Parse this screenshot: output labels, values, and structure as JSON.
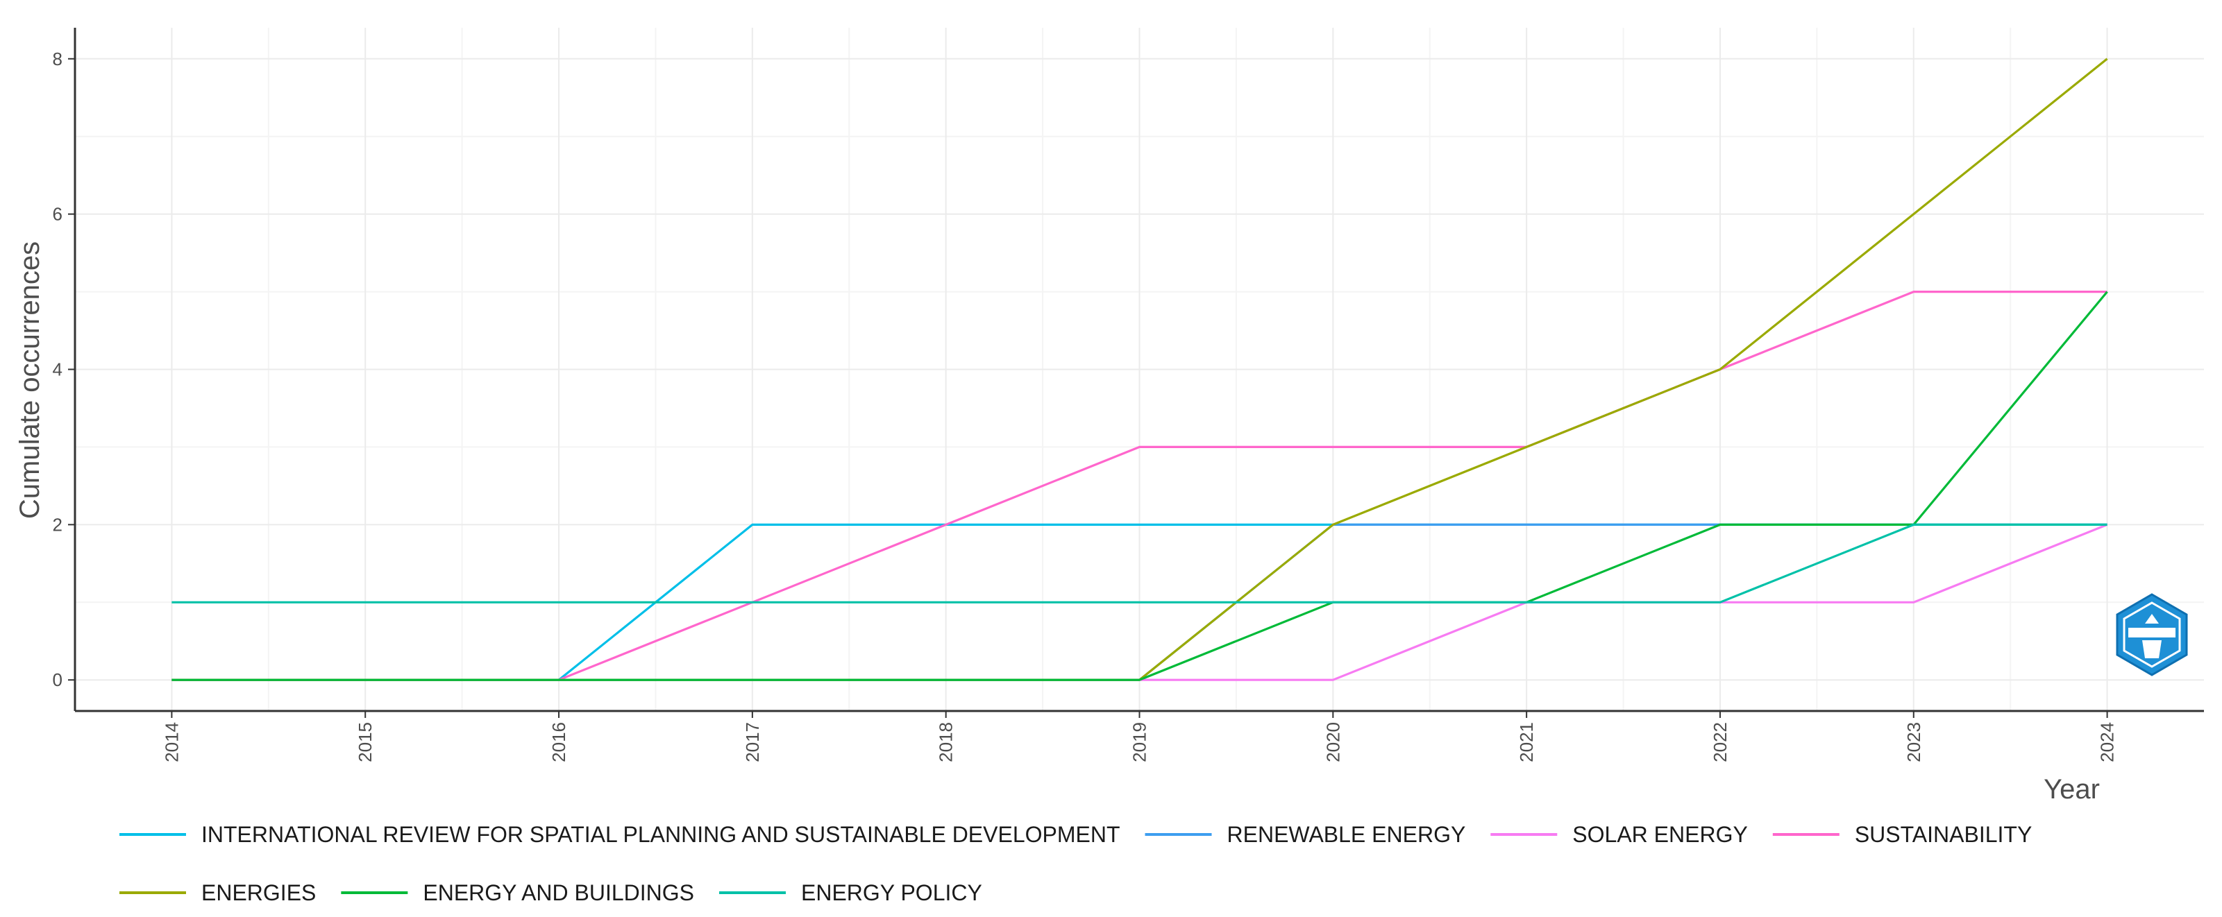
{
  "chart_data": {
    "type": "line",
    "title": "",
    "xlabel": "Year",
    "ylabel": "Cumulate occurrences",
    "x": [
      2014,
      2015,
      2016,
      2017,
      2018,
      2019,
      2020,
      2021,
      2022,
      2023,
      2024
    ],
    "x_tick_labels": [
      "2014",
      "2015",
      "2016",
      "2017",
      "2018",
      "2019",
      "2020",
      "2021",
      "2022",
      "2023",
      "2024"
    ],
    "y_tick_labels": [
      "0",
      "2",
      "4",
      "6",
      "8"
    ],
    "y_ticks": [
      0,
      2,
      4,
      6,
      8
    ],
    "ylim": [
      -0.4,
      8.4
    ],
    "xlim": [
      2013.5,
      2024.5
    ],
    "grid": true,
    "legend_position": "bottom",
    "series": [
      {
        "name": "INTERNATIONAL REVIEW FOR SPATIAL PLANNING AND SUSTAINABLE DEVELOPMENT",
        "color": "#00BFE8",
        "values": [
          0,
          0,
          0,
          2,
          2,
          2,
          2,
          2,
          2,
          2,
          2
        ]
      },
      {
        "name": "RENEWABLE ENERGY",
        "color": "#3D9EF0",
        "values": [
          0,
          0,
          0,
          0,
          0,
          0,
          2,
          2,
          2,
          2,
          2
        ]
      },
      {
        "name": "SOLAR ENERGY",
        "color": "#F77BF2",
        "values": [
          0,
          0,
          0,
          0,
          0,
          0,
          0,
          1,
          1,
          1,
          2
        ]
      },
      {
        "name": "SUSTAINABILITY",
        "color": "#FF66CC",
        "values": [
          0,
          0,
          0,
          1,
          2,
          3,
          3,
          3,
          4,
          5,
          5
        ]
      },
      {
        "name": "ENERGIES",
        "color": "#9AAA00",
        "values": [
          0,
          0,
          0,
          0,
          0,
          0,
          2,
          3,
          4,
          6,
          8
        ]
      },
      {
        "name": "ENERGY AND BUILDINGS",
        "color": "#00BA38",
        "values": [
          0,
          0,
          0,
          0,
          0,
          0,
          1,
          1,
          2,
          2,
          5
        ]
      },
      {
        "name": "ENERGY POLICY",
        "color": "#00C1A8",
        "values": [
          1,
          1,
          1,
          1,
          1,
          1,
          1,
          1,
          1,
          2,
          2
        ]
      }
    ]
  },
  "logo": {
    "name": "bibliometrix-logo",
    "color": "#1E90D6"
  }
}
